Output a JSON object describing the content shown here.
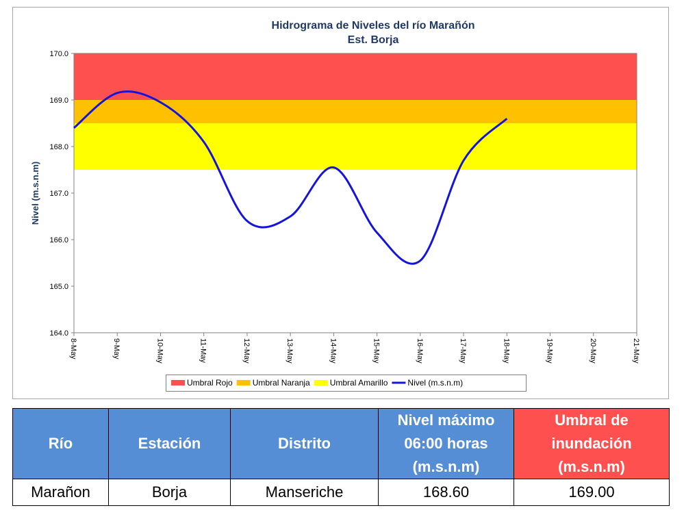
{
  "chart_data": {
    "type": "line",
    "title": "Hidrograma de Niveles del río Marañón",
    "subtitle": "Est. Borja",
    "y_label": "Nivel (m.s.n.m)",
    "categories": [
      "8-May",
      "9-May",
      "10-May",
      "11-May",
      "12-May",
      "13-May",
      "14-May",
      "15-May",
      "16-May",
      "17-May",
      "18-May",
      "19-May",
      "20-May",
      "21-May"
    ],
    "bands": [
      {
        "name": "Umbral Rojo",
        "color": "#ff5050",
        "from": 169,
        "to": 170
      },
      {
        "name": "Umbral Naranja",
        "color": "#ffc000",
        "from": 168.5,
        "to": 169
      },
      {
        "name": "Umbral Amarillo",
        "color": "#ffff00",
        "from": 167.5,
        "to": 168.5
      }
    ],
    "series": [
      {
        "name": "Nivel (m.s.n.m)",
        "color": "#1414dc",
        "values": [
          168.4,
          169.15,
          168.95,
          168.1,
          166.4,
          166.5,
          167.55,
          166.15,
          165.55,
          167.7,
          168.6,
          null,
          null,
          null
        ]
      }
    ],
    "ylim": [
      164,
      170
    ],
    "yticks": [
      {
        "value": 164,
        "label": "164.0"
      },
      {
        "value": 165,
        "label": "165.0"
      },
      {
        "value": 166,
        "label": "166.0"
      },
      {
        "value": 167,
        "label": "167.0"
      },
      {
        "value": 168,
        "label": "168.0"
      },
      {
        "value": 169,
        "label": "169.0"
      },
      {
        "value": 170,
        "label": "170.0"
      }
    ],
    "grid": false
  },
  "table": {
    "header": [
      "Río",
      "Estación",
      "Distrito",
      "Nivel máximo 06:00 horas (m.s.n.m)",
      "Umbral de inundación (m.s.n.m)"
    ],
    "rows": [
      [
        "Marañon",
        "Borja",
        "Manseriche",
        "168.60",
        "169.00"
      ]
    ]
  }
}
